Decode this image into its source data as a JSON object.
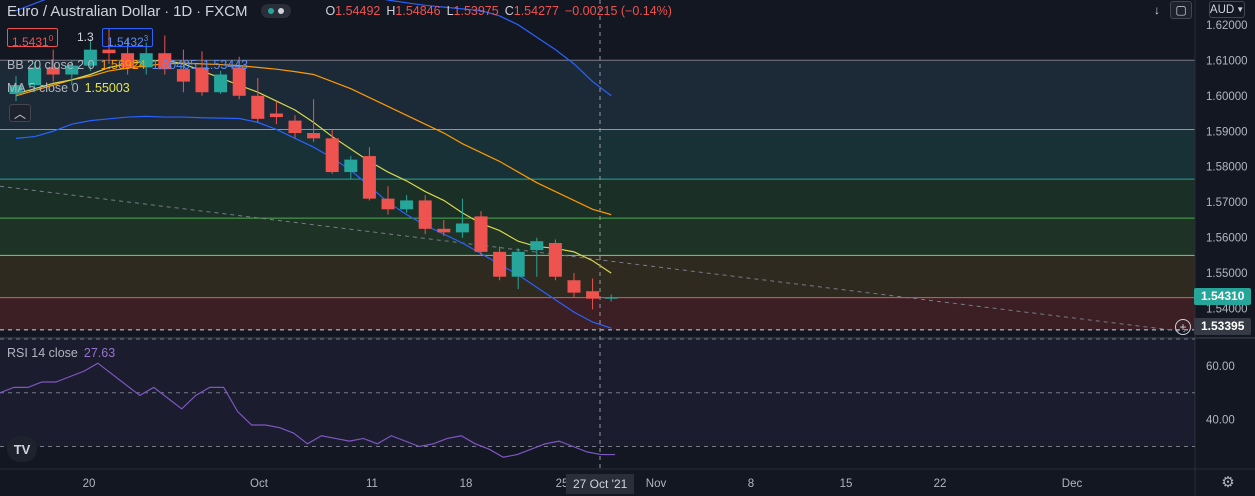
{
  "header": {
    "symbol": "Euro / Australian Dollar",
    "interval": "1D",
    "exchange": "FXCM",
    "ohlc": {
      "o_label": "O",
      "o": "1.54492",
      "h_label": "H",
      "h": "1.54846",
      "l_label": "L",
      "l": "1.53975",
      "c_label": "C",
      "c": "1.54277",
      "change": "−0.00215 (−0.14%)"
    }
  },
  "trade": {
    "sell": "1.5431",
    "sell_small": "0",
    "spread": "1.3",
    "buy": "1.5432",
    "buy_small": "3"
  },
  "indicators": {
    "bb": {
      "name": "BB 20 close 2 0",
      "basis": "1.56924",
      "upper": "1.60405",
      "lower": "1.53443"
    },
    "ma": {
      "name": "MA 5 close 0",
      "value": "1.55003"
    },
    "rsi": {
      "name": "RSI 14 close",
      "value": "27.63"
    }
  },
  "currency": "AUD",
  "crosshair": {
    "date_label": "27 Oct '21",
    "price_label": "1.53395"
  },
  "last_price_label": "1.54310",
  "colors": {
    "background": "#131722",
    "up": "#26a69a",
    "down": "#ef5350",
    "bb_basis": "#ff9800",
    "bb_bands": "#2962ff",
    "ma": "#d8d84a",
    "rsi": "#7e57c2",
    "axis_text": "#b2b5be"
  },
  "chart_data": [
    {
      "type": "candlestick",
      "title": "Euro / Australian Dollar",
      "x_tick_labels": [
        "20",
        "Oct",
        "11",
        "18",
        "25",
        "Nov",
        "8",
        "15",
        "22",
        "Dec"
      ],
      "y_tick_labels": [
        "1.62000",
        "1.61000",
        "1.60000",
        "1.59000",
        "1.58000",
        "1.57000",
        "1.56000",
        "1.55000",
        "1.54000"
      ],
      "ylim": [
        1.532,
        1.627
      ],
      "candles": [
        {
          "date": "2021-09-13",
          "o": 1.6005,
          "h": 1.6055,
          "l": 1.5985,
          "c": 1.603
        },
        {
          "date": "2021-09-14",
          "o": 1.603,
          "h": 1.6095,
          "l": 1.601,
          "c": 1.608
        },
        {
          "date": "2021-09-15",
          "o": 1.608,
          "h": 1.613,
          "l": 1.604,
          "c": 1.606
        },
        {
          "date": "2021-09-16",
          "o": 1.606,
          "h": 1.61,
          "l": 1.603,
          "c": 1.6085
        },
        {
          "date": "2021-09-17",
          "o": 1.6085,
          "h": 1.616,
          "l": 1.607,
          "c": 1.613
        },
        {
          "date": "2021-09-20",
          "o": 1.613,
          "h": 1.619,
          "l": 1.609,
          "c": 1.612
        },
        {
          "date": "2021-09-21",
          "o": 1.612,
          "h": 1.616,
          "l": 1.606,
          "c": 1.608
        },
        {
          "date": "2021-09-22",
          "o": 1.608,
          "h": 1.615,
          "l": 1.606,
          "c": 1.612
        },
        {
          "date": "2021-09-23",
          "o": 1.612,
          "h": 1.617,
          "l": 1.606,
          "c": 1.6075
        },
        {
          "date": "2021-09-24",
          "o": 1.6075,
          "h": 1.613,
          "l": 1.601,
          "c": 1.604
        },
        {
          "date": "2021-09-27",
          "o": 1.608,
          "h": 1.6125,
          "l": 1.6,
          "c": 1.601
        },
        {
          "date": "2021-09-28",
          "o": 1.601,
          "h": 1.607,
          "l": 1.6005,
          "c": 1.606
        },
        {
          "date": "2021-09-29",
          "o": 1.608,
          "h": 1.611,
          "l": 1.599,
          "c": 1.6
        },
        {
          "date": "2021-09-30",
          "o": 1.6,
          "h": 1.605,
          "l": 1.5925,
          "c": 1.5935
        },
        {
          "date": "2021-10-01",
          "o": 1.595,
          "h": 1.5985,
          "l": 1.592,
          "c": 1.594
        },
        {
          "date": "2021-10-04",
          "o": 1.593,
          "h": 1.5945,
          "l": 1.588,
          "c": 1.5895
        },
        {
          "date": "2021-10-05",
          "o": 1.5895,
          "h": 1.599,
          "l": 1.587,
          "c": 1.588
        },
        {
          "date": "2021-10-06",
          "o": 1.588,
          "h": 1.5905,
          "l": 1.578,
          "c": 1.5785
        },
        {
          "date": "2021-10-07",
          "o": 1.5785,
          "h": 1.583,
          "l": 1.5765,
          "c": 1.582
        },
        {
          "date": "2021-10-08",
          "o": 1.583,
          "h": 1.5855,
          "l": 1.5705,
          "c": 1.571
        },
        {
          "date": "2021-10-11",
          "o": 1.571,
          "h": 1.5745,
          "l": 1.5665,
          "c": 1.568
        },
        {
          "date": "2021-10-12",
          "o": 1.568,
          "h": 1.572,
          "l": 1.567,
          "c": 1.5705
        },
        {
          "date": "2021-10-13",
          "o": 1.5705,
          "h": 1.572,
          "l": 1.561,
          "c": 1.5625
        },
        {
          "date": "2021-10-14",
          "o": 1.5625,
          "h": 1.565,
          "l": 1.5605,
          "c": 1.5615
        },
        {
          "date": "2021-10-15",
          "o": 1.5615,
          "h": 1.571,
          "l": 1.56,
          "c": 1.564
        },
        {
          "date": "2021-10-18",
          "o": 1.566,
          "h": 1.5675,
          "l": 1.555,
          "c": 1.556
        },
        {
          "date": "2021-10-19",
          "o": 1.556,
          "h": 1.5575,
          "l": 1.548,
          "c": 1.549
        },
        {
          "date": "2021-10-20",
          "o": 1.549,
          "h": 1.557,
          "l": 1.5455,
          "c": 1.556
        },
        {
          "date": "2021-10-21",
          "o": 1.5565,
          "h": 1.56,
          "l": 1.549,
          "c": 1.559
        },
        {
          "date": "2021-10-22",
          "o": 1.5585,
          "h": 1.5595,
          "l": 1.548,
          "c": 1.549
        },
        {
          "date": "2021-10-25",
          "o": 1.548,
          "h": 1.55,
          "l": 1.543,
          "c": 1.5445
        },
        {
          "date": "2021-10-26",
          "o": 1.5449,
          "h": 1.5485,
          "l": 1.5398,
          "c": 1.5428
        },
        {
          "date": "2021-10-27",
          "o": 1.5428,
          "h": 1.544,
          "l": 1.542,
          "c": 1.5431
        }
      ],
      "overlays": [
        {
          "name": "BB basis",
          "values": [
            1.6,
            1.6015,
            1.603,
            1.6045,
            1.6055,
            1.607,
            1.6078,
            1.6085,
            1.609,
            1.6092,
            1.609,
            1.6088,
            1.6085,
            1.608,
            1.6075,
            1.6068,
            1.606,
            1.604,
            1.602,
            1.5995,
            1.597,
            1.5945,
            1.592,
            1.5895,
            1.5865,
            1.584,
            1.5815,
            1.5785,
            1.5755,
            1.573,
            1.5705,
            1.568,
            1.5665
          ]
        },
        {
          "name": "BB upper",
          "values": [
            1.624,
            1.626,
            1.628,
            1.6295,
            1.6305,
            1.631,
            1.6315,
            1.6318,
            1.632,
            1.632,
            1.6318,
            1.6315,
            1.6312,
            1.6308,
            1.6305,
            1.63,
            1.6295,
            1.629,
            1.6285,
            1.628,
            1.627,
            1.6262,
            1.6255,
            1.625,
            1.6245,
            1.624,
            1.6225,
            1.62,
            1.6165,
            1.613,
            1.609,
            1.604,
            1.6
          ]
        },
        {
          "name": "BB lower",
          "values": [
            1.588,
            1.5885,
            1.59,
            1.592,
            1.593,
            1.5935,
            1.594,
            1.5942,
            1.594,
            1.594,
            1.5938,
            1.5937,
            1.5936,
            1.5925,
            1.5905,
            1.588,
            1.5855,
            1.5825,
            1.579,
            1.5745,
            1.57,
            1.5665,
            1.5635,
            1.561,
            1.5585,
            1.5555,
            1.5525,
            1.5495,
            1.546,
            1.5425,
            1.539,
            1.5362,
            1.5345
          ]
        },
        {
          "name": "MA 5",
          "values": [
            1.6005,
            1.602,
            1.6035,
            1.6045,
            1.606,
            1.608,
            1.609,
            1.6098,
            1.61,
            1.609,
            1.607,
            1.605,
            1.603,
            1.601,
            1.5985,
            1.596,
            1.5925,
            1.5885,
            1.585,
            1.5815,
            1.5785,
            1.576,
            1.573,
            1.5705,
            1.567,
            1.564,
            1.562,
            1.559,
            1.5575,
            1.557,
            1.556,
            1.5535,
            1.55
          ]
        }
      ],
      "horizontal_levels": [
        1.61,
        1.5905,
        1.5765,
        1.5655,
        1.555,
        1.5431,
        1.534
      ]
    },
    {
      "type": "line",
      "title": "RSI 14 close",
      "y_tick_labels": [
        "60.00",
        "40.00"
      ],
      "ylim": [
        22,
        70
      ],
      "guides": [
        70,
        50,
        30
      ],
      "series": [
        {
          "name": "RSI",
          "values": [
            50,
            52,
            52,
            54,
            54,
            56,
            58,
            61,
            57,
            53,
            49,
            52,
            48,
            44,
            49,
            52,
            52,
            43,
            38,
            38,
            37,
            35,
            31,
            34,
            33,
            32,
            33,
            31,
            34,
            32,
            30,
            31,
            33,
            34,
            31,
            29,
            26,
            27,
            29,
            31,
            32,
            30,
            28,
            27,
            27
          ]
        }
      ]
    }
  ]
}
